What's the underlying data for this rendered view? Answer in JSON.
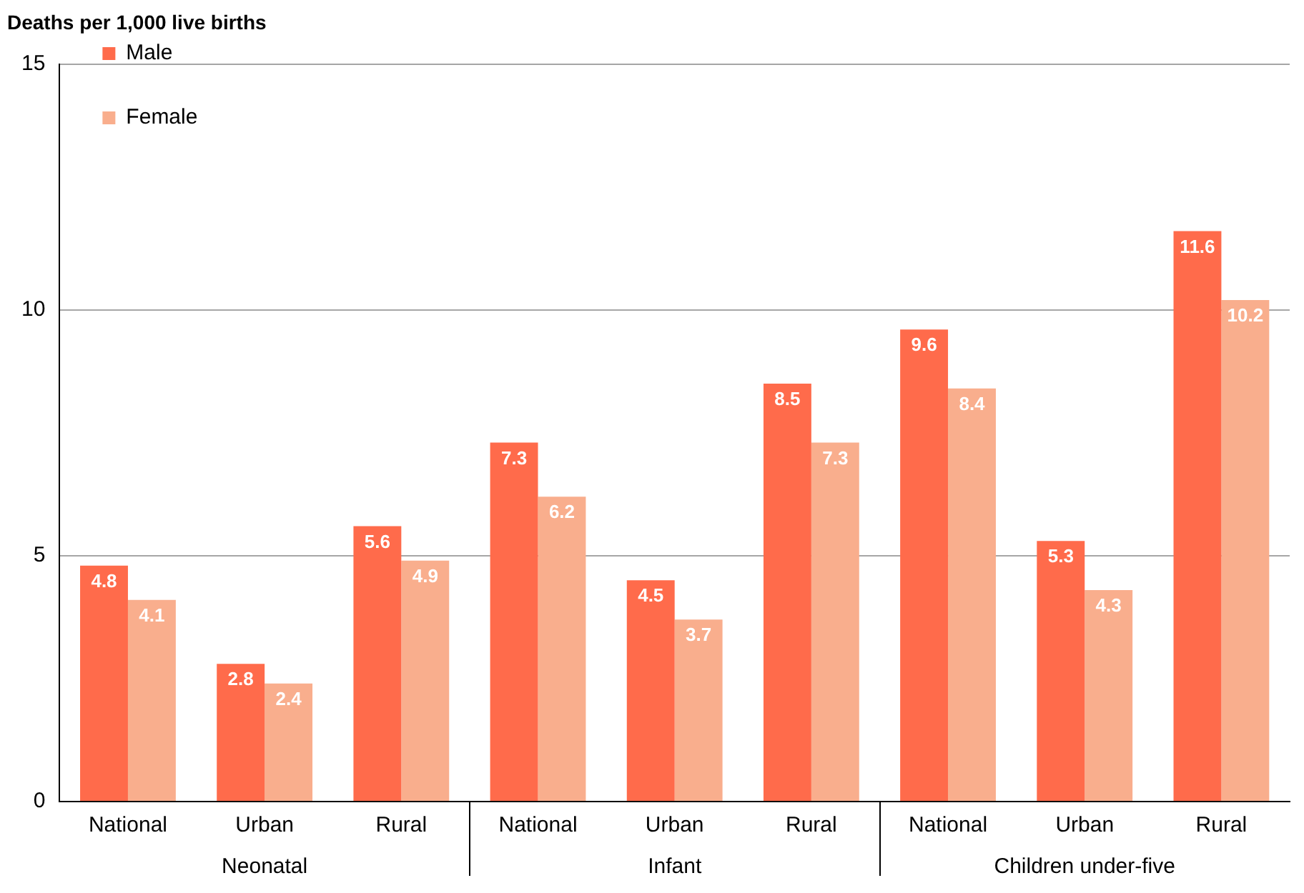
{
  "chart_data": {
    "type": "bar",
    "ylabel": "Deaths per 1,000 live births",
    "categories": [
      "National",
      "Urban",
      "Rural",
      "National",
      "Urban",
      "Rural",
      "National",
      "Urban",
      "Rural"
    ],
    "series": [
      {
        "name": "Male",
        "color": "#ff6b4b",
        "values": [
          4.8,
          2.8,
          5.6,
          7.3,
          4.5,
          8.5,
          9.6,
          5.3,
          11.6
        ]
      },
      {
        "name": "Female",
        "color": "#f9ae8d",
        "values": [
          4.1,
          2.4,
          4.9,
          6.2,
          3.7,
          7.3,
          8.4,
          4.3,
          10.2
        ]
      }
    ],
    "annotations": [
      "Neonatal",
      "Infant",
      "Children under-five"
    ],
    "ylim": [
      0,
      15
    ],
    "yticks": [
      0,
      5,
      10,
      15
    ],
    "grid": "y",
    "legend": "top left",
    "data_labels": true
  }
}
